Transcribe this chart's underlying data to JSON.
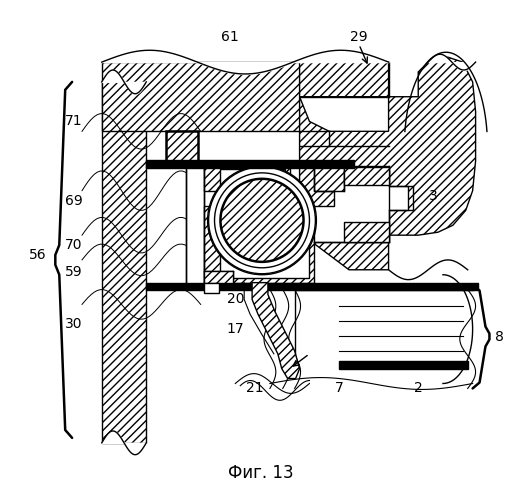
{
  "title": "Фиг. 13",
  "background_color": "#ffffff",
  "figure_width": 5.23,
  "figure_height": 5.0,
  "dpi": 100
}
